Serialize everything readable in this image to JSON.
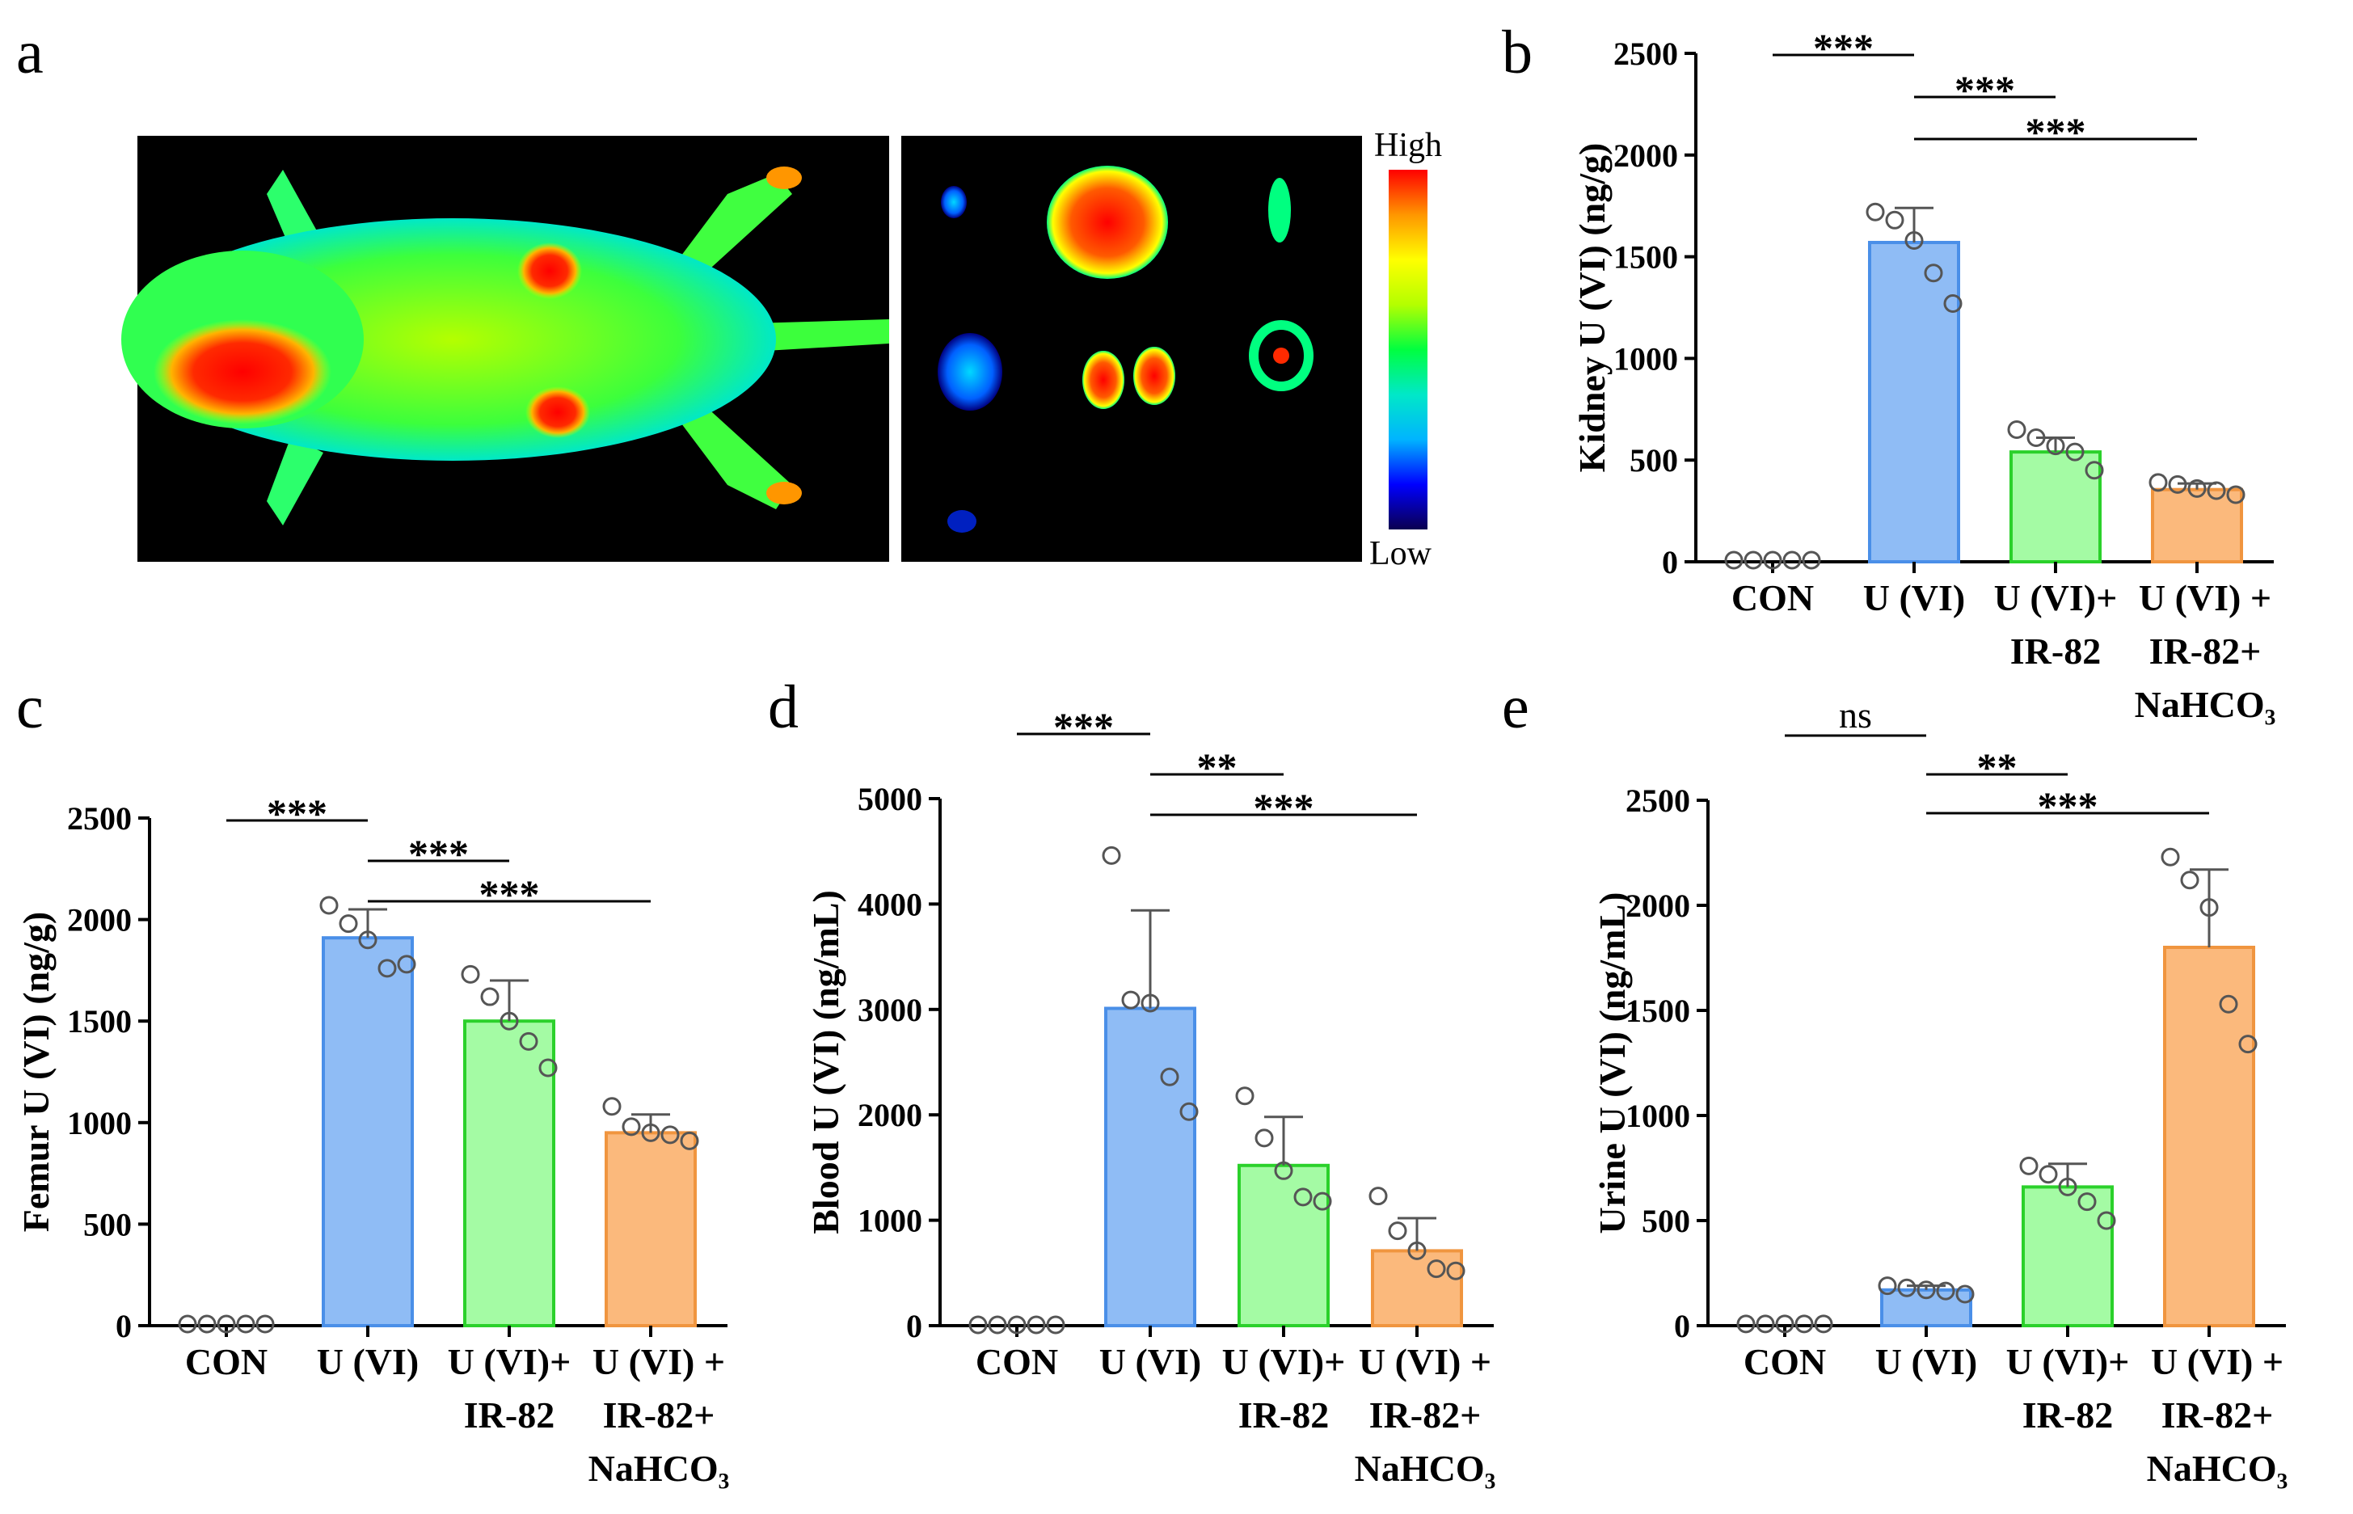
{
  "panel_a": {
    "letter": "a",
    "scale_high": "High",
    "scale_low": "Low",
    "colormap": [
      "#0b0050",
      "#0000ff",
      "#00b4ff",
      "#00e8c8",
      "#00ff40",
      "#b4ff00",
      "#ffff00",
      "#ff9600",
      "#ff0000"
    ],
    "image_background": "#000000"
  },
  "chart_data": [
    {
      "panel": "b",
      "type": "bar",
      "ylabel": "Kidney U (VI) (ng/g)",
      "ylim": [
        0,
        2500
      ],
      "yticks": [
        "0",
        "500",
        "1000",
        "1500",
        "2000",
        "2500"
      ],
      "categories": [
        [
          "CON"
        ],
        [
          "U (VI)"
        ],
        [
          "U (VI)+",
          "IR-82"
        ],
        [
          "U (VI) +",
          "IR-82+",
          "NaHCO₃"
        ]
      ],
      "values": [
        10,
        1570,
        540,
        355
      ],
      "errors": [
        0,
        170,
        70,
        30
      ],
      "points": [
        [
          8,
          8,
          8,
          8,
          8
        ],
        [
          1720,
          1680,
          1580,
          1420,
          1270
        ],
        [
          650,
          610,
          570,
          540,
          450
        ],
        [
          390,
          380,
          360,
          350,
          330
        ]
      ],
      "significance": [
        {
          "from": 0,
          "to": 1,
          "label": "***"
        },
        {
          "from": 1,
          "to": 2,
          "label": "***"
        },
        {
          "from": 1,
          "to": 3,
          "label": "***"
        }
      ]
    },
    {
      "panel": "c",
      "type": "bar",
      "ylabel": "Femur U (VI) (ng/g)",
      "ylim": [
        0,
        2500
      ],
      "yticks": [
        "0",
        "500",
        "1000",
        "1500",
        "2000",
        "2500"
      ],
      "categories": [
        [
          "CON"
        ],
        [
          "U (VI)"
        ],
        [
          "U (VI)+",
          "IR-82"
        ],
        [
          "U (VI) +",
          "IR-82+",
          "NaHCO₃"
        ]
      ],
      "values": [
        10,
        1910,
        1500,
        950
      ],
      "errors": [
        0,
        140,
        200,
        90
      ],
      "points": [
        [
          8,
          8,
          8,
          8,
          8
        ],
        [
          2070,
          1980,
          1900,
          1760,
          1780
        ],
        [
          1730,
          1620,
          1500,
          1400,
          1270
        ],
        [
          1080,
          980,
          950,
          940,
          910
        ]
      ],
      "significance": [
        {
          "from": 0,
          "to": 1,
          "label": "***"
        },
        {
          "from": 1,
          "to": 2,
          "label": "***"
        },
        {
          "from": 1,
          "to": 3,
          "label": "***"
        }
      ]
    },
    {
      "panel": "d",
      "type": "bar",
      "ylabel": "Blood U (VI) (ng/mL)",
      "ylim": [
        0,
        5000
      ],
      "yticks": [
        "0",
        "1000",
        "2000",
        "3000",
        "4000",
        "5000"
      ],
      "categories": [
        [
          "CON"
        ],
        [
          "U (VI)"
        ],
        [
          "U (VI)+",
          "IR-82"
        ],
        [
          "U (VI) +",
          "IR-82+",
          "NaHCO₃"
        ]
      ],
      "values": [
        10,
        3010,
        1520,
        710
      ],
      "errors": [
        0,
        930,
        460,
        310
      ],
      "points": [
        [
          8,
          8,
          8,
          8,
          8
        ],
        [
          4460,
          3090,
          3060,
          2360,
          2030
        ],
        [
          2180,
          1780,
          1470,
          1220,
          1180
        ],
        [
          1230,
          900,
          710,
          540,
          520
        ]
      ],
      "significance": [
        {
          "from": 0,
          "to": 1,
          "label": "***"
        },
        {
          "from": 1,
          "to": 2,
          "label": "**"
        },
        {
          "from": 1,
          "to": 3,
          "label": "***"
        }
      ]
    },
    {
      "panel": "e",
      "type": "bar",
      "ylabel": "Urine U (VI) (ng/mL)",
      "ylim": [
        0,
        2500
      ],
      "yticks": [
        "0",
        "500",
        "1000",
        "1500",
        "2000",
        "2500"
      ],
      "categories": [
        [
          "CON"
        ],
        [
          "U (VI)"
        ],
        [
          "U (VI)+",
          "IR-82"
        ],
        [
          "U (VI) +",
          "IR-82+",
          "NaHCO₃"
        ]
      ],
      "values": [
        10,
        170,
        660,
        1800
      ],
      "errors": [
        0,
        20,
        110,
        370
      ],
      "points": [
        [
          8,
          8,
          8,
          8,
          8
        ],
        [
          190,
          180,
          170,
          165,
          150
        ],
        [
          760,
          720,
          660,
          590,
          500
        ],
        [
          2230,
          2120,
          1990,
          1530,
          1340
        ]
      ],
      "significance": [
        {
          "from": 0,
          "to": 1,
          "label": "ns"
        },
        {
          "from": 1,
          "to": 2,
          "label": "**"
        },
        {
          "from": 1,
          "to": 3,
          "label": "***"
        }
      ]
    }
  ],
  "bar_colors": [
    {
      "fill": "#dcdcdc",
      "stroke": "#777777"
    },
    {
      "fill": "#8fbcf5",
      "stroke": "#4a8fe8"
    },
    {
      "fill": "#a4fba4",
      "stroke": "#2bd12b"
    },
    {
      "fill": "#fbb97c",
      "stroke": "#f0953f"
    }
  ]
}
